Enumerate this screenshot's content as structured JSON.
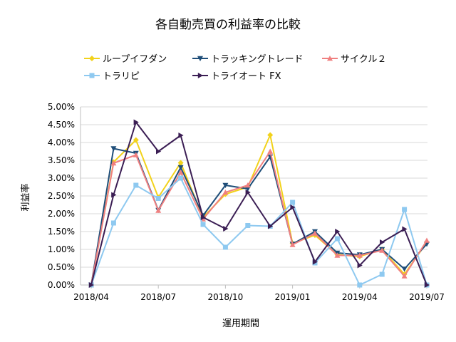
{
  "chart_data": {
    "type": "line",
    "title": "各自動売買の利益率の比較",
    "xlabel": "運用期間",
    "ylabel": "利益率",
    "ylim": [
      0,
      0.05
    ],
    "y_ticks": [
      "0.00%",
      "0.50%",
      "1.00%",
      "1.50%",
      "2.00%",
      "2.50%",
      "3.00%",
      "3.50%",
      "4.00%",
      "4.50%",
      "5.00%"
    ],
    "x_ticks": [
      "2018/04",
      "2018/07",
      "2018/10",
      "2019/01",
      "2019/04",
      "2019/07"
    ],
    "x": [
      "2018/04",
      "2018/05",
      "2018/06",
      "2018/07",
      "2018/08",
      "2018/09",
      "2018/10",
      "2018/11",
      "2018/12",
      "2019/01",
      "2019/02",
      "2019/03",
      "2019/04",
      "2019/05",
      "2019/06",
      "2019/07"
    ],
    "grid": true,
    "legend_position": "top",
    "series": [
      {
        "name": "ループイフダン",
        "color": "#f2d21b",
        "marker": "diamond",
        "values": [
          0.0,
          0.0345,
          0.0407,
          0.0246,
          0.0343,
          0.019,
          0.0255,
          0.0275,
          0.0421,
          0.0117,
          0.014,
          0.0085,
          0.008,
          0.01,
          0.003,
          0.012
        ]
      },
      {
        "name": "トラッキングトレード",
        "color": "#1f4e79",
        "marker": "triangle-down",
        "values": [
          0.0,
          0.0383,
          0.037,
          0.021,
          0.033,
          0.0195,
          0.028,
          0.027,
          0.036,
          0.0115,
          0.015,
          0.009,
          0.0085,
          0.01,
          0.0045,
          0.0115
        ]
      },
      {
        "name": "サイクル２",
        "color": "#f08080",
        "marker": "triangle-up",
        "values": [
          0.0,
          0.0342,
          0.0365,
          0.0209,
          0.0316,
          0.0185,
          0.026,
          0.028,
          0.0375,
          0.0113,
          0.0145,
          0.0083,
          0.0083,
          0.0097,
          0.0025,
          0.0125
        ]
      },
      {
        "name": "トラリピ",
        "color": "#8ec9f0",
        "marker": "square",
        "values": [
          0.0,
          0.0174,
          0.028,
          0.0243,
          0.03,
          0.017,
          0.0106,
          0.0167,
          0.0165,
          0.0232,
          0.0062,
          0.013,
          0.0,
          0.003,
          0.0212,
          0.0
        ]
      },
      {
        "name": "トライオート FX",
        "color": "#3b1e54",
        "marker": "triangle-right",
        "values": [
          0.0,
          0.0253,
          0.0457,
          0.0375,
          0.042,
          0.019,
          0.0158,
          0.026,
          0.0165,
          0.0218,
          0.0065,
          0.015,
          0.0055,
          0.012,
          0.0157,
          0.0
        ]
      }
    ]
  }
}
